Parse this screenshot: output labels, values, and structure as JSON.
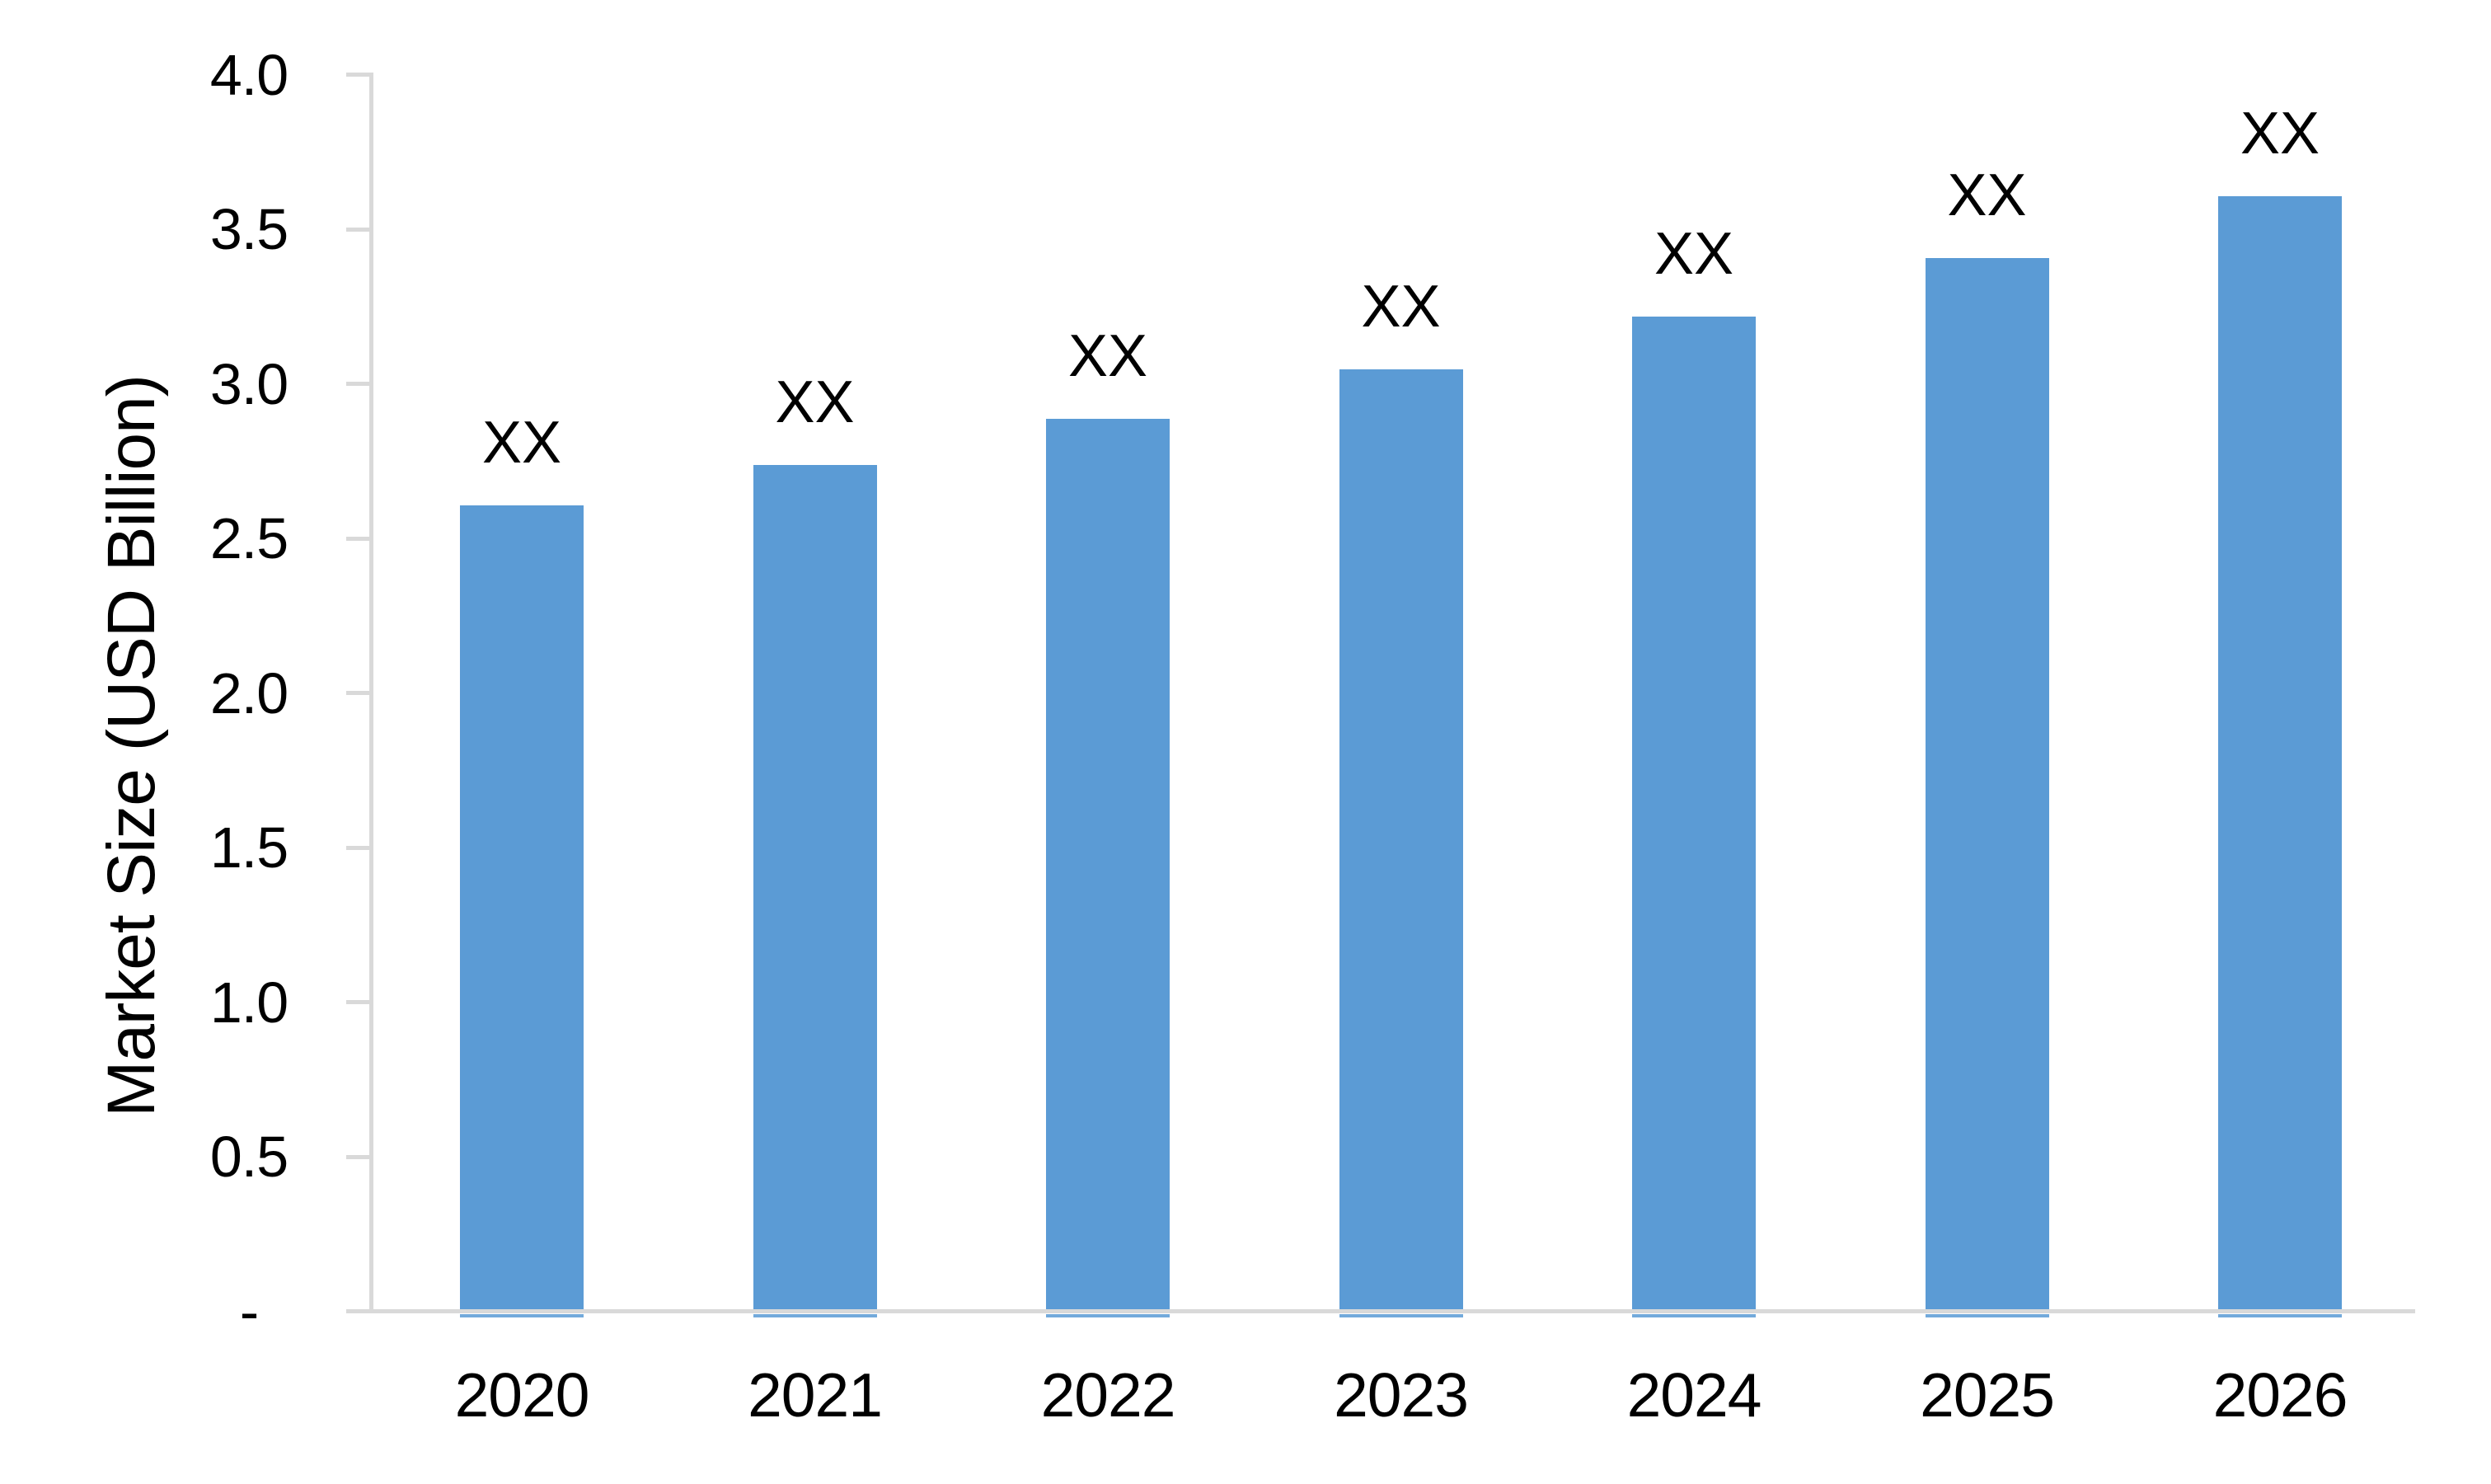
{
  "chart_data": {
    "type": "bar",
    "title": "",
    "categories": [
      "2020",
      "2021",
      "2022",
      "2023",
      "2024",
      "2025",
      "2026"
    ],
    "values": [
      2.6,
      2.73,
      2.88,
      3.04,
      3.21,
      3.4,
      3.6
    ],
    "bar_value_labels": [
      "XX",
      "XX",
      "XX",
      "XX",
      "XX",
      "XX",
      "XX"
    ],
    "xlabel": "",
    "ylabel": "Market Size (USD Billion)",
    "ylim": [
      0,
      4
    ],
    "ytick_step": 0.5,
    "ytick_labels": [
      "-",
      "0.5",
      "1.0",
      "1.5",
      "2.0",
      "2.5",
      "3.0",
      "3.5",
      "4.0"
    ],
    "grid": false,
    "legend": "none",
    "bar_color": "#5B9BD5",
    "axis_color": "#D9D9D9",
    "label_color": "#000000"
  }
}
